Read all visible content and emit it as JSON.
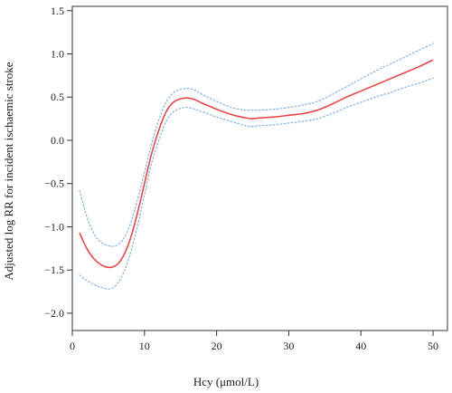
{
  "chart_data": {
    "type": "line",
    "title": "",
    "xlabel": "Hcy (μmol/L)",
    "ylabel": "Adjusted log RR for incident ischaemic stroke",
    "xlim": [
      0,
      52
    ],
    "ylim": [
      -2.2,
      1.55
    ],
    "xticks": [
      0,
      10,
      20,
      30,
      40,
      50
    ],
    "yticks": [
      -2.0,
      -1.5,
      -1.0,
      -0.5,
      0.0,
      0.5,
      1.0,
      1.5
    ],
    "ytick_labels": [
      "−2.0",
      "−1.5",
      "−1.0",
      "−0.5",
      "0.0",
      "0.5",
      "1.0",
      "1.5"
    ],
    "grid": false,
    "colors": {
      "estimate": "#e8474a",
      "ci": "#8fb6e3"
    },
    "series": [
      {
        "role": "estimate",
        "style": "solid",
        "x": [
          1,
          2,
          3,
          4,
          5,
          6,
          7,
          8,
          9,
          10,
          11,
          12,
          13,
          14,
          15,
          16,
          17,
          18,
          20,
          22,
          24,
          25,
          26,
          28,
          30,
          32,
          34,
          36,
          38,
          40,
          42,
          44,
          46,
          48,
          50
        ],
        "y": [
          -1.07,
          -1.25,
          -1.37,
          -1.44,
          -1.47,
          -1.45,
          -1.35,
          -1.15,
          -0.85,
          -0.5,
          -0.15,
          0.12,
          0.33,
          0.44,
          0.48,
          0.49,
          0.47,
          0.43,
          0.36,
          0.3,
          0.26,
          0.25,
          0.26,
          0.27,
          0.29,
          0.31,
          0.35,
          0.42,
          0.5,
          0.57,
          0.64,
          0.71,
          0.78,
          0.85,
          0.93
        ]
      },
      {
        "role": "ci-upper",
        "style": "dotted",
        "x": [
          1,
          2,
          3,
          4,
          5,
          6,
          7,
          8,
          9,
          10,
          11,
          12,
          13,
          14,
          15,
          16,
          17,
          18,
          20,
          22,
          24,
          25,
          26,
          28,
          30,
          32,
          34,
          36,
          38,
          40,
          42,
          44,
          46,
          48,
          50
        ],
        "y": [
          -0.58,
          -0.88,
          -1.08,
          -1.18,
          -1.22,
          -1.22,
          -1.15,
          -0.98,
          -0.7,
          -0.37,
          -0.04,
          0.24,
          0.44,
          0.55,
          0.59,
          0.6,
          0.58,
          0.53,
          0.45,
          0.38,
          0.35,
          0.35,
          0.35,
          0.36,
          0.38,
          0.41,
          0.45,
          0.53,
          0.62,
          0.71,
          0.8,
          0.88,
          0.96,
          1.04,
          1.12
        ]
      },
      {
        "role": "ci-lower",
        "style": "dotted",
        "x": [
          1,
          2,
          3,
          4,
          5,
          6,
          7,
          8,
          9,
          10,
          11,
          12,
          13,
          14,
          15,
          16,
          17,
          18,
          20,
          22,
          24,
          25,
          26,
          28,
          30,
          32,
          34,
          36,
          38,
          40,
          42,
          44,
          46,
          48,
          50
        ],
        "y": [
          -1.56,
          -1.62,
          -1.67,
          -1.7,
          -1.72,
          -1.68,
          -1.55,
          -1.32,
          -1.0,
          -0.63,
          -0.26,
          0.0,
          0.22,
          0.33,
          0.37,
          0.38,
          0.36,
          0.33,
          0.27,
          0.22,
          0.17,
          0.16,
          0.17,
          0.18,
          0.2,
          0.22,
          0.25,
          0.31,
          0.38,
          0.44,
          0.5,
          0.55,
          0.61,
          0.66,
          0.72
        ]
      }
    ]
  }
}
